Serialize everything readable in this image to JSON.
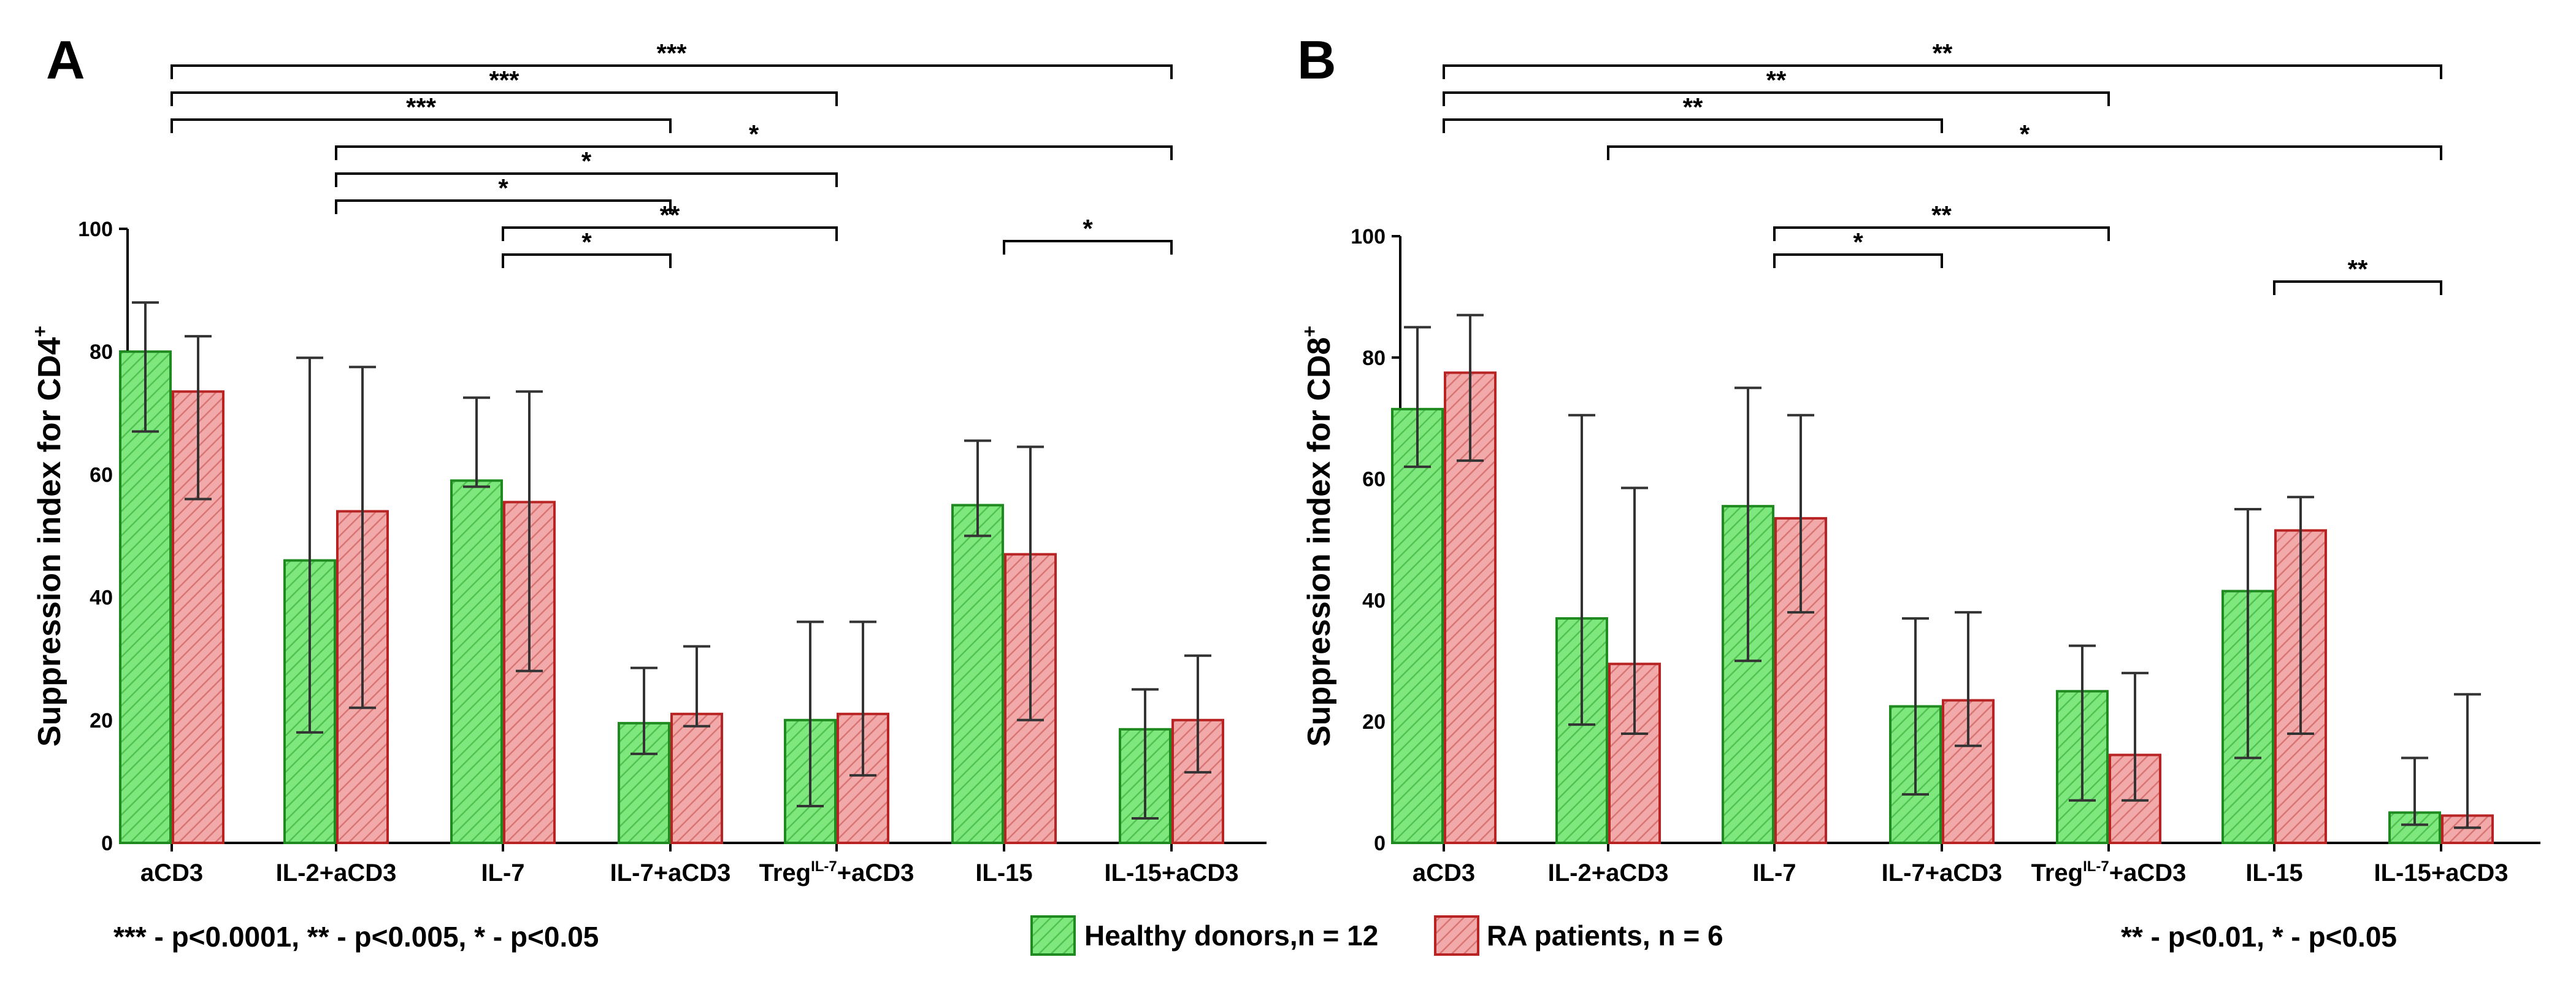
{
  "colors": {
    "healthy": "#7ee87e",
    "healthy_edge": "#1f8a1f",
    "ra": "#f0a0a0",
    "ra_edge": "#b82424"
  },
  "legend": [
    {
      "label": "Healthy donors,n = 12",
      "color_key": "healthy"
    },
    {
      "label": "RA patients, n = 6",
      "color_key": "ra"
    }
  ],
  "chart_data": [
    {
      "panel": "A",
      "type": "bar",
      "ylabel_main": "Suppression index for CD4",
      "ylabel_sup": "+",
      "ylim": [
        0,
        100
      ],
      "yticks": [
        "0",
        "20",
        "40",
        "60",
        "80",
        "100"
      ],
      "categories": [
        {
          "main": "aCD3",
          "sup": "",
          "post": ""
        },
        {
          "main": "IL-2+aCD3",
          "sup": "",
          "post": ""
        },
        {
          "main": "IL-7",
          "sup": "",
          "post": ""
        },
        {
          "main": "IL-7+aCD3",
          "sup": "",
          "post": ""
        },
        {
          "main": "Treg",
          "sup": "IL-7",
          "post": "+aCD3"
        },
        {
          "main": "IL-15",
          "sup": "",
          "post": ""
        },
        {
          "main": "IL-15+aCD3",
          "sup": "",
          "post": ""
        }
      ],
      "series": [
        {
          "name": "Healthy donors,n = 12",
          "values": [
            80,
            46,
            59,
            19.5,
            20,
            55,
            18.5
          ],
          "err_low": [
            67,
            18,
            58,
            14.5,
            6,
            50,
            4
          ],
          "err_high": [
            88,
            79,
            72.5,
            28.5,
            36,
            65.5,
            25
          ]
        },
        {
          "name": "RA patients, n = 6",
          "values": [
            73.5,
            54,
            55.5,
            21,
            21,
            47,
            20
          ],
          "err_low": [
            56,
            22,
            28,
            19,
            11,
            20,
            11.5
          ],
          "err_high": [
            82.5,
            77.5,
            73.5,
            32,
            36,
            64.5,
            30.5
          ]
        }
      ],
      "significance": [
        {
          "from": 0,
          "to": 6,
          "level": 0,
          "label": "***"
        },
        {
          "from": 0,
          "to": 4,
          "level": 1,
          "label": "***"
        },
        {
          "from": 0,
          "to": 3,
          "level": 2,
          "label": "***"
        },
        {
          "from": 1,
          "to": 6,
          "level": 3,
          "label": "*"
        },
        {
          "from": 1,
          "to": 4,
          "level": 4,
          "label": "*"
        },
        {
          "from": 1,
          "to": 3,
          "level": 5,
          "label": "*"
        },
        {
          "from": 2,
          "to": 4,
          "level": 6,
          "label": "**"
        },
        {
          "from": 2,
          "to": 3,
          "level": 7,
          "label": "*"
        },
        {
          "from": 5,
          "to": 6,
          "level": 6.5,
          "label": "*"
        }
      ],
      "note": "*** - p<0.0001,  ** - p<0.005,  * - p<0.05"
    },
    {
      "panel": "B",
      "type": "bar",
      "ylabel_main": "Suppression index for CD8",
      "ylabel_sup": "+",
      "ylim": [
        0,
        100
      ],
      "yticks": [
        "0",
        "20",
        "40",
        "60",
        "80",
        "100"
      ],
      "categories": [
        {
          "main": "aCD3",
          "sup": "",
          "post": ""
        },
        {
          "main": "IL-2+aCD3",
          "sup": "",
          "post": ""
        },
        {
          "main": "IL-7",
          "sup": "",
          "post": ""
        },
        {
          "main": "IL-7+aCD3",
          "sup": "",
          "post": ""
        },
        {
          "main": "Treg",
          "sup": "IL-7",
          "post": "+aCD3"
        },
        {
          "main": "IL-15",
          "sup": "",
          "post": ""
        },
        {
          "main": "IL-15+aCD3",
          "sup": "",
          "post": ""
        }
      ],
      "series": [
        {
          "name": "Healthy donors,n = 12",
          "values": [
            71.5,
            37,
            55.5,
            22.5,
            25,
            41.5,
            5
          ],
          "err_low": [
            62,
            19.5,
            30,
            8,
            7,
            14,
            3
          ],
          "err_high": [
            85,
            70.5,
            75,
            37,
            32.5,
            55,
            14
          ]
        },
        {
          "name": "RA patients, n = 6",
          "values": [
            77.5,
            29.5,
            53.5,
            23.5,
            14.5,
            51.5,
            4.5
          ],
          "err_low": [
            63,
            18,
            38,
            16,
            7,
            18,
            2.5
          ],
          "err_high": [
            87,
            58.5,
            70.5,
            38,
            28,
            57,
            24.5
          ]
        }
      ],
      "significance": [
        {
          "from": 0,
          "to": 6,
          "level": 0,
          "label": "**"
        },
        {
          "from": 0,
          "to": 4,
          "level": 1,
          "label": "**"
        },
        {
          "from": 0,
          "to": 3,
          "level": 2,
          "label": "**"
        },
        {
          "from": 1,
          "to": 6,
          "level": 3,
          "label": "*"
        },
        {
          "from": 2,
          "to": 4,
          "level": 6,
          "label": "**"
        },
        {
          "from": 2,
          "to": 3,
          "level": 7,
          "label": "*"
        },
        {
          "from": 5,
          "to": 6,
          "level": 8,
          "label": "**"
        }
      ],
      "note": "** - p<0.01,  * - p<0.05"
    }
  ]
}
